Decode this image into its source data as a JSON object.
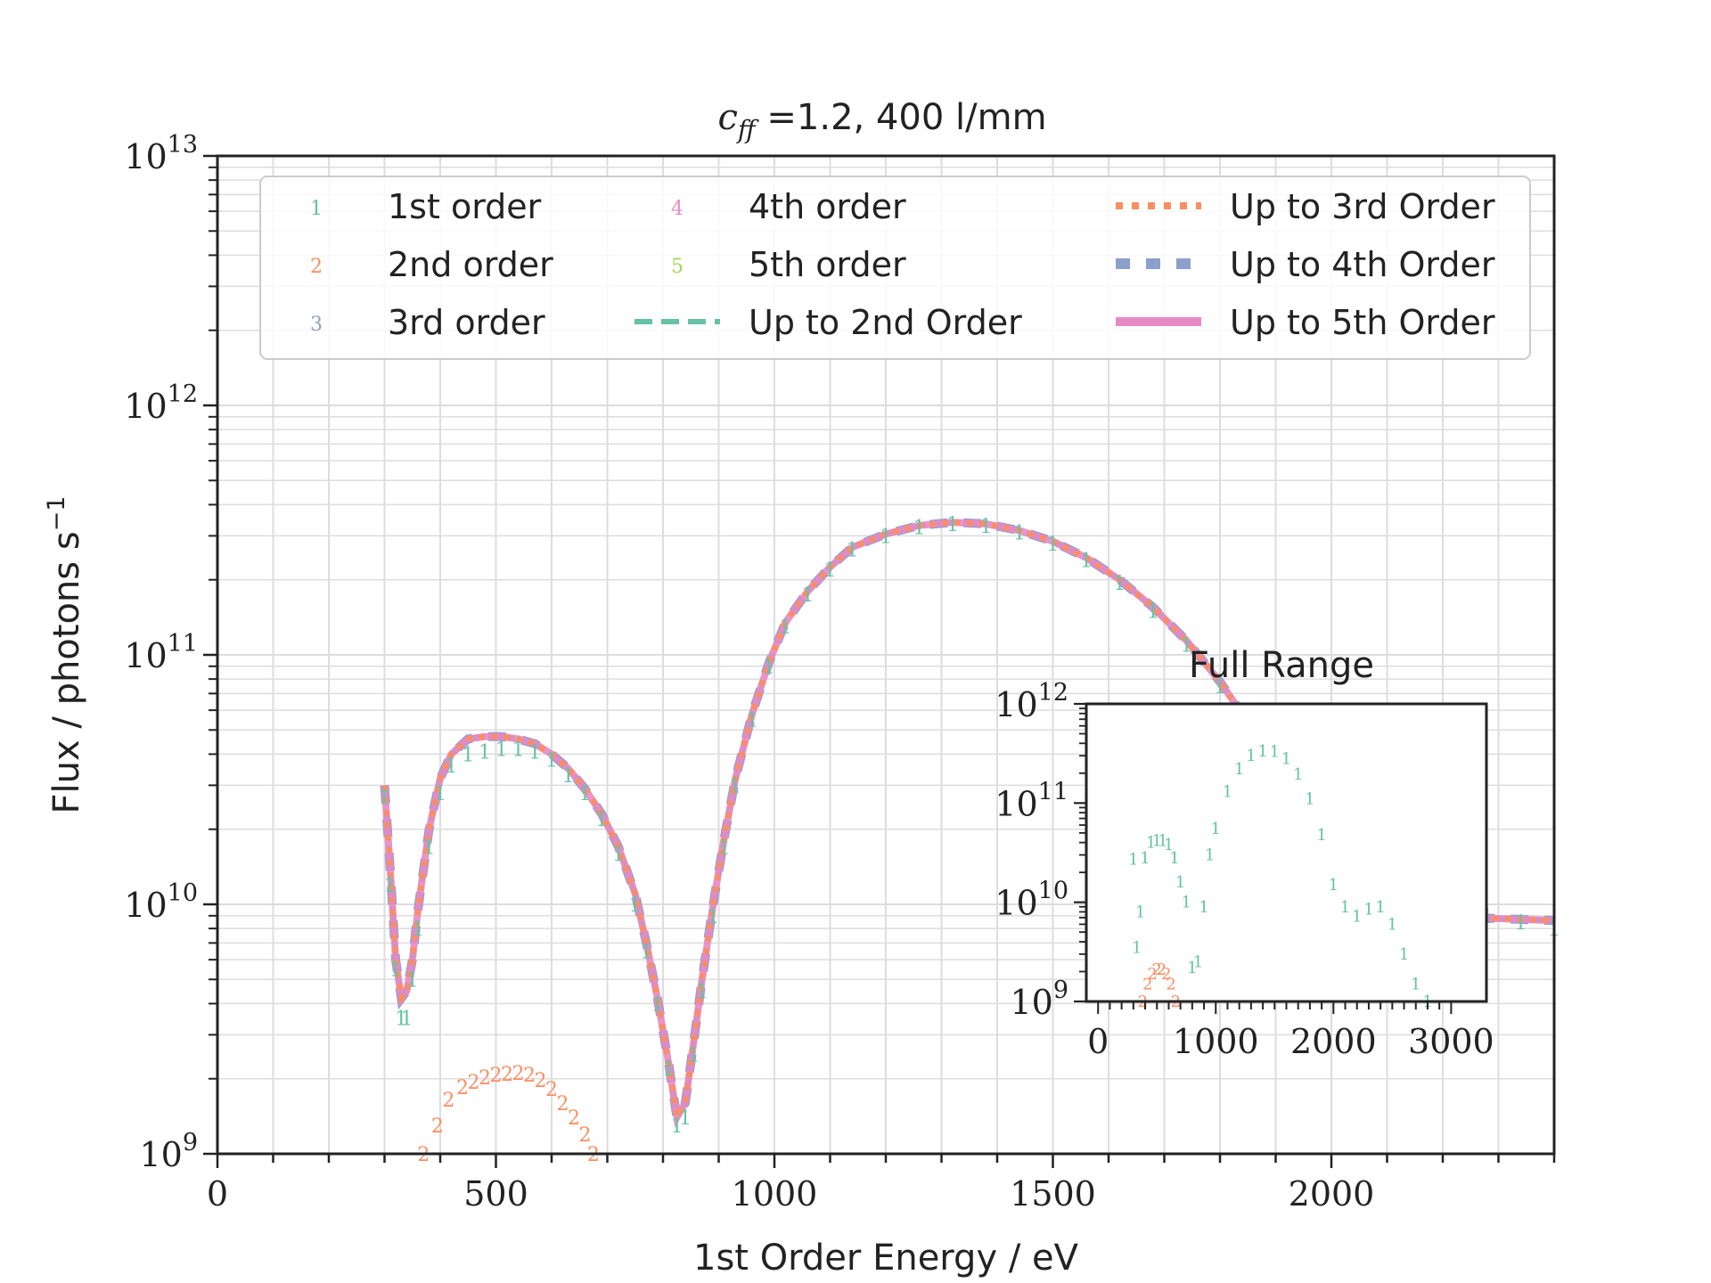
{
  "chart_data": [
    {
      "type": "line",
      "title_parts": {
        "symbol": "c",
        "subscript": "ff",
        "rest": " =1.2, 400 l/mm"
      },
      "xlabel": "1st Order Energy / eV",
      "ylabel": "Flux / photons s",
      "ylabel_exponent": "−1",
      "xlim": [
        0,
        2400
      ],
      "ylim": [
        1000000000,
        10000000000000
      ],
      "yscale": "log",
      "grid": true,
      "legend_position": "top",
      "x_ticks": [
        {
          "value": 0,
          "label": "0"
        },
        {
          "value": 500,
          "label": "500"
        },
        {
          "value": 1000,
          "label": "1000"
        },
        {
          "value": 1500,
          "label": "1500"
        },
        {
          "value": 2000,
          "label": "2000"
        }
      ],
      "y_ticks": [
        {
          "value": 1000000000,
          "base": "10",
          "exp": "9"
        },
        {
          "value": 10000000000,
          "base": "10",
          "exp": "10"
        },
        {
          "value": 100000000000,
          "base": "10",
          "exp": "11"
        },
        {
          "value": 1000000000000,
          "base": "10",
          "exp": "12"
        },
        {
          "value": 10000000000000,
          "base": "10",
          "exp": "13"
        }
      ],
      "legend": [
        {
          "label": "1st order",
          "marker": "1",
          "color": "#66c2a5",
          "kind": "marker"
        },
        {
          "label": "2nd order",
          "marker": "2",
          "color": "#fc8d62",
          "kind": "marker"
        },
        {
          "label": "3rd order",
          "marker": "3",
          "color": "#8da0cb",
          "kind": "marker"
        },
        {
          "label": "4th order",
          "marker": "4",
          "color": "#e78ac3",
          "kind": "marker"
        },
        {
          "label": "5th order",
          "marker": "5",
          "color": "#a6d854",
          "kind": "marker"
        },
        {
          "label": "Up to 2nd Order",
          "color": "#66c2a5",
          "kind": "dashed"
        },
        {
          "label": "Up to 3rd Order",
          "color": "#fc8d62",
          "kind": "dotted"
        },
        {
          "label": "Up to 4th Order",
          "color": "#8da0cb",
          "kind": "dashdot"
        },
        {
          "label": "Up to 5th Order",
          "color": "#e78ac3",
          "kind": "solid"
        }
      ],
      "series": [
        {
          "name": "1st order",
          "marker": "1",
          "color": "#66c2a5",
          "x": [
            300,
            310,
            320,
            330,
            340,
            350,
            360,
            380,
            400,
            420,
            450,
            480,
            510,
            540,
            570,
            600,
            630,
            660,
            690,
            720,
            750,
            770,
            790,
            810,
            825,
            840,
            855,
            870,
            890,
            910,
            930,
            960,
            990,
            1020,
            1060,
            1100,
            1140,
            1200,
            1260,
            1320,
            1380,
            1440,
            1500,
            1560,
            1620,
            1680,
            1740,
            1800,
            1860,
            1920,
            1980,
            2040,
            2100,
            2160,
            2220,
            2280,
            2340,
            2400
          ],
          "y": [
            27000000000,
            12000000000,
            5500000000,
            3500000000,
            3500000000,
            5000000000,
            8000000000,
            17000000000,
            28000000000,
            36000000000,
            40000000000,
            41000000000,
            42000000000,
            42000000000,
            41000000000,
            38000000000,
            33000000000,
            28000000000,
            22000000000,
            16000000000,
            10000000000,
            6500000000,
            4000000000,
            2200000000,
            1300000000,
            1400000000,
            2500000000,
            4500000000,
            9000000000,
            17000000000,
            30000000000,
            55000000000,
            90000000000,
            130000000000,
            175000000000,
            220000000000,
            265000000000,
            300000000000,
            325000000000,
            335000000000,
            330000000000,
            310000000000,
            280000000000,
            240000000000,
            195000000000,
            150000000000,
            110000000000,
            75000000000,
            48000000000,
            28000000000,
            15000000000,
            9000000000,
            7200000000,
            7500000000,
            8500000000,
            9000000000,
            8500000000,
            8000000000
          ]
        },
        {
          "name": "2nd order",
          "marker": "2",
          "color": "#fc8d62",
          "x": [
            370,
            395,
            415,
            440,
            460,
            480,
            500,
            520,
            540,
            560,
            580,
            600,
            620,
            640,
            660,
            675
          ],
          "y": [
            1000000000,
            1300000000,
            1650000000,
            1850000000,
            1950000000,
            2030000000,
            2080000000,
            2100000000,
            2110000000,
            2080000000,
            1980000000,
            1820000000,
            1600000000,
            1400000000,
            1200000000,
            1000000000
          ]
        },
        {
          "name": "Up to 5th Order",
          "color": "#e78ac3",
          "x": [
            300,
            310,
            320,
            330,
            340,
            350,
            360,
            380,
            400,
            420,
            450,
            480,
            510,
            540,
            570,
            600,
            630,
            660,
            690,
            720,
            750,
            770,
            790,
            810,
            825,
            840,
            855,
            870,
            890,
            910,
            930,
            960,
            990,
            1020,
            1060,
            1100,
            1140,
            1200,
            1260,
            1320,
            1380,
            1440,
            1500,
            1560,
            1620,
            1680,
            1740,
            1800,
            1860,
            1920,
            1980,
            2040,
            2100,
            2160,
            2220,
            2280,
            2340,
            2400
          ],
          "y": [
            30000000000,
            14000000000,
            6000000000,
            4200000000,
            4500000000,
            6000000000,
            9500000000,
            20000000000,
            32000000000,
            40000000000,
            46000000000,
            47000000000,
            47000000000,
            46000000000,
            44000000000,
            40000000000,
            35000000000,
            29000000000,
            23000000000,
            17000000000,
            11000000000,
            7000000000,
            4200000000,
            2300000000,
            1400000000,
            1600000000,
            2800000000,
            5000000000,
            10000000000,
            18500000000,
            32000000000,
            58000000000,
            93000000000,
            135000000000,
            180000000000,
            225000000000,
            270000000000,
            305000000000,
            330000000000,
            340000000000,
            335000000000,
            315000000000,
            285000000000,
            245000000000,
            200000000000,
            155000000000,
            114000000000,
            78000000000,
            50000000000,
            30000000000,
            16000000000,
            9500000000,
            7500000000,
            7600000000,
            8300000000,
            8800000000,
            8700000000,
            8600000000
          ]
        }
      ]
    },
    {
      "type": "scatter",
      "title": "Full Range",
      "xlim": [
        -100,
        3300
      ],
      "ylim": [
        1000000000,
        1000000000000
      ],
      "yscale": "log",
      "x_ticks": [
        {
          "value": 0,
          "label": "0"
        },
        {
          "value": 1000,
          "label": "1000"
        },
        {
          "value": 2000,
          "label": "2000"
        },
        {
          "value": 3000,
          "label": "3000"
        }
      ],
      "y_ticks": [
        {
          "value": 1000000000,
          "base": "10",
          "exp": "9"
        },
        {
          "value": 10000000000,
          "base": "10",
          "exp": "10"
        },
        {
          "value": 100000000000,
          "base": "10",
          "exp": "11"
        },
        {
          "value": 1000000000000,
          "base": "10",
          "exp": "12"
        }
      ],
      "series": [
        {
          "name": "1st order",
          "marker": "1",
          "color": "#66c2a5",
          "x": [
            300,
            330,
            360,
            400,
            450,
            500,
            550,
            600,
            650,
            700,
            750,
            800,
            850,
            900,
            950,
            1000,
            1100,
            1200,
            1300,
            1400,
            1500,
            1600,
            1700,
            1800,
            1900,
            2000,
            2100,
            2200,
            2300,
            2400,
            2500,
            2600,
            2700,
            2800
          ],
          "y": [
            27000000000,
            3500000000,
            8000000000,
            28000000000,
            40000000000,
            42000000000,
            42000000000,
            38000000000,
            28000000000,
            16000000000,
            10000000000,
            2200000000,
            2500000000,
            9000000000,
            30000000000,
            55000000000,
            130000000000,
            220000000000,
            300000000000,
            335000000000,
            330000000000,
            280000000000,
            195000000000,
            110000000000,
            48000000000,
            15000000000,
            9000000000,
            7200000000,
            8500000000,
            9000000000,
            6000000000,
            3000000000,
            1500000000,
            1000000000
          ]
        },
        {
          "name": "2nd order",
          "marker": "2",
          "color": "#fc8d62",
          "x": [
            380,
            420,
            460,
            500,
            540,
            580,
            620,
            660
          ],
          "y": [
            1000000000,
            1500000000,
            1900000000,
            2100000000,
            2100000000,
            1900000000,
            1500000000,
            1000000000
          ]
        }
      ]
    }
  ]
}
